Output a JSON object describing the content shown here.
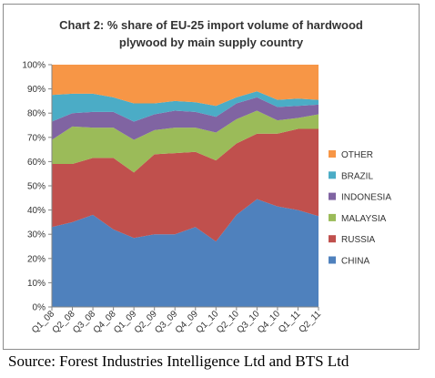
{
  "chart_data": {
    "type": "area",
    "stacked": true,
    "percent": true,
    "title_lines": [
      "Chart 2: % share of EU-25 import volume of hardwood",
      "plywood by main supply country"
    ],
    "categories": [
      "Q1_08",
      "Q2_08",
      "Q3_08",
      "Q4_08",
      "Q1_09",
      "Q2_09",
      "Q3_09",
      "Q4_09",
      "Q1_10",
      "Q2_10",
      "Q3_10",
      "Q4_10",
      "Q1_11",
      "Q2_11"
    ],
    "ylim": [
      0,
      100
    ],
    "yticks": [
      "0%",
      "10%",
      "20%",
      "30%",
      "40%",
      "50%",
      "60%",
      "70%",
      "80%",
      "90%",
      "100%"
    ],
    "grid": false,
    "legend_position": "right",
    "series": [
      {
        "name": "CHINA",
        "color": "#4f81bd",
        "values": [
          33,
          35,
          38,
          32,
          28.5,
          30,
          30,
          33,
          27,
          38,
          44.5,
          41.5,
          40,
          37.5
        ]
      },
      {
        "name": "RUSSIA",
        "color": "#c0504d",
        "values": [
          26,
          24,
          23.5,
          29.5,
          27,
          33,
          33.5,
          31,
          33.5,
          29.5,
          27,
          30,
          33.5,
          36
        ]
      },
      {
        "name": "MALAYSIA",
        "color": "#9bbb59",
        "values": [
          10,
          15.5,
          12.5,
          12.5,
          13.5,
          10,
          10.5,
          10,
          11.5,
          10,
          9.5,
          5.5,
          4.5,
          6
        ]
      },
      {
        "name": "INDONESIA",
        "color": "#8064a2",
        "values": [
          7.5,
          5.5,
          6.5,
          6.5,
          7.5,
          6.5,
          7,
          6.5,
          6.5,
          6.5,
          5.5,
          5.5,
          5,
          4
        ]
      },
      {
        "name": "BRAZIL",
        "color": "#4bacc6",
        "values": [
          11,
          8,
          7.5,
          6,
          7.5,
          4.5,
          4,
          4,
          4.5,
          2.5,
          2.5,
          3,
          3,
          2
        ]
      },
      {
        "name": "OTHER",
        "color": "#f79646",
        "values": [
          12.5,
          12,
          12,
          13.5,
          16,
          16,
          15,
          15.5,
          17,
          13.5,
          11,
          14.5,
          14,
          14.5
        ]
      }
    ]
  },
  "source": "Source: Forest Industries Intelligence Ltd and BTS Ltd"
}
